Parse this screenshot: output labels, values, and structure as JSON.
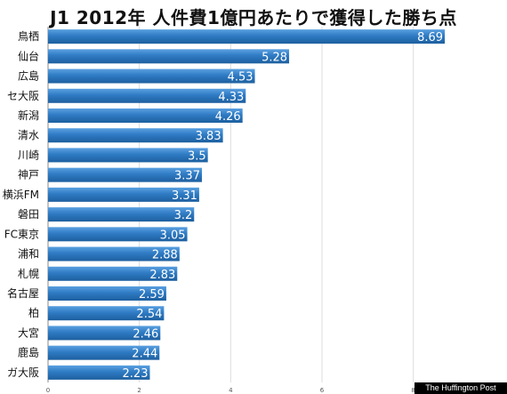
{
  "chart_data": {
    "type": "bar",
    "orientation": "horizontal",
    "title": "J1 2012年 人件費1億円あたりで獲得した勝ち点",
    "categories": [
      "鳥栖",
      "仙台",
      "広島",
      "セ大阪",
      "新潟",
      "清水",
      "川崎",
      "神戸",
      "横浜FM",
      "磐田",
      "FC東京",
      "浦和",
      "札幌",
      "名古屋",
      "柏",
      "大宮",
      "鹿島",
      "ガ大阪"
    ],
    "values": [
      8.69,
      5.28,
      4.53,
      4.33,
      4.26,
      3.83,
      3.5,
      3.37,
      3.31,
      3.2,
      3.05,
      2.88,
      2.83,
      2.59,
      2.54,
      2.46,
      2.44,
      2.23
    ],
    "value_labels": [
      "8.69",
      "5.28",
      "4.53",
      "4.33",
      "4.26",
      "3.83",
      "3.5",
      "3.37",
      "3.31",
      "3.2",
      "3.05",
      "2.88",
      "2.83",
      "2.59",
      "2.54",
      "2.46",
      "2.44",
      "2.23"
    ],
    "xlim": [
      0,
      9
    ],
    "x_ticks": [
      "0",
      "2",
      "4",
      "6",
      "8"
    ],
    "xlabel": "",
    "ylabel": "",
    "grid": true,
    "bar_color": "#2f7bc4"
  },
  "watermark": "The Huffington Post"
}
